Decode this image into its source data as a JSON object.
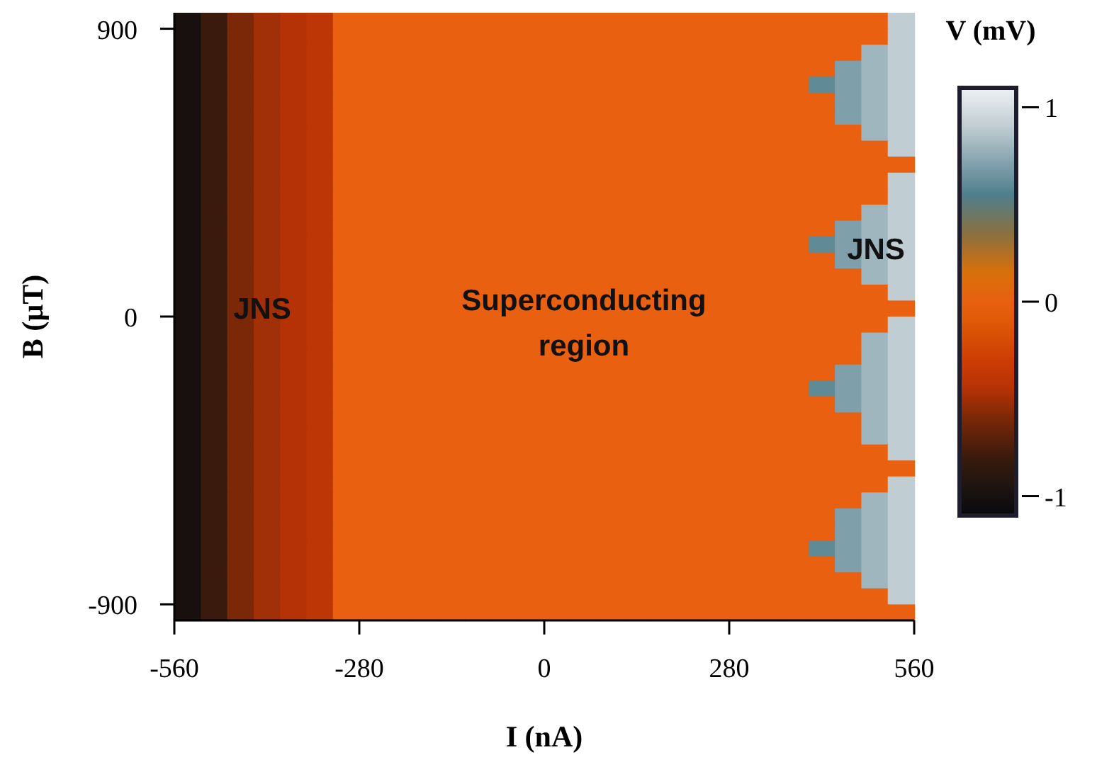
{
  "chart_data": {
    "type": "heatmap",
    "xlabel": "I (nA)",
    "ylabel": "B (µT)",
    "clabel": "V (mV)",
    "x": [
      -540,
      -500,
      -460,
      -420,
      -380,
      -340,
      -300,
      -260,
      -220,
      -180,
      -140,
      -100,
      -60,
      -20,
      20,
      60,
      100,
      140,
      180,
      220,
      260,
      300,
      340,
      380,
      420,
      460,
      500,
      540
    ],
    "y": [
      925,
      875,
      825,
      775,
      725,
      675,
      625,
      575,
      525,
      475,
      425,
      375,
      325,
      275,
      225,
      175,
      125,
      75,
      25,
      -25,
      -75,
      -125,
      -175,
      -225,
      -275,
      -325,
      -375,
      -425,
      -475,
      -525,
      -575,
      -625,
      -675,
      -725,
      -775,
      -825,
      -875,
      -925
    ],
    "xlim": [
      -560,
      560
    ],
    "xticks": [
      -560,
      -280,
      0,
      280,
      560
    ],
    "ylim": [
      -950,
      950
    ],
    "yticks": [
      -900,
      0,
      900
    ],
    "clim": [
      -1.1,
      1.1
    ],
    "cticks": [
      -1,
      0,
      1
    ],
    "cells": [
      [
        -1,
        -0.8,
        -0.6,
        -0.5,
        -0.45,
        -0.4,
        0,
        0,
        0,
        0,
        0,
        0,
        0,
        0,
        0,
        0,
        0,
        0,
        0,
        0,
        0,
        0,
        0,
        0,
        0,
        0,
        0,
        0.9
      ],
      [
        -1,
        -0.8,
        -0.6,
        -0.5,
        -0.45,
        -0.4,
        0,
        0,
        0,
        0,
        0,
        0,
        0,
        0,
        0,
        0,
        0,
        0,
        0,
        0,
        0,
        0,
        0,
        0,
        0,
        0,
        0,
        0.9
      ],
      [
        -1,
        -0.8,
        -0.6,
        -0.5,
        -0.45,
        -0.4,
        0,
        0,
        0,
        0,
        0,
        0,
        0,
        0,
        0,
        0,
        0,
        0,
        0,
        0,
        0,
        0,
        0,
        0,
        0,
        0,
        0.8,
        0.9
      ],
      [
        -1,
        -0.8,
        -0.6,
        -0.5,
        -0.45,
        -0.4,
        0,
        0,
        0,
        0,
        0,
        0,
        0,
        0,
        0,
        0,
        0,
        0,
        0,
        0,
        0,
        0,
        0,
        0,
        0,
        0.7,
        0.8,
        0.9
      ],
      [
        -1,
        -0.8,
        -0.6,
        -0.5,
        -0.45,
        -0.4,
        0,
        0,
        0,
        0,
        0,
        0,
        0,
        0,
        0,
        0,
        0,
        0,
        0,
        0,
        0,
        0,
        0,
        0,
        0.6,
        0.7,
        0.8,
        0.9
      ],
      [
        -1,
        -0.8,
        -0.6,
        -0.5,
        -0.45,
        -0.4,
        0,
        0,
        0,
        0,
        0,
        0,
        0,
        0,
        0,
        0,
        0,
        0,
        0,
        0,
        0,
        0,
        0,
        0,
        0,
        0.7,
        0.8,
        0.9
      ],
      [
        -1,
        -0.8,
        -0.6,
        -0.5,
        -0.45,
        -0.4,
        0,
        0,
        0,
        0,
        0,
        0,
        0,
        0,
        0,
        0,
        0,
        0,
        0,
        0,
        0,
        0,
        0,
        0,
        0,
        0.7,
        0.8,
        0.9
      ],
      [
        -1,
        -0.8,
        -0.6,
        -0.5,
        -0.45,
        -0.4,
        0,
        0,
        0,
        0,
        0,
        0,
        0,
        0,
        0,
        0,
        0,
        0,
        0,
        0,
        0,
        0,
        0,
        0,
        0,
        0,
        0.8,
        0.9
      ],
      [
        -1,
        -0.8,
        -0.6,
        -0.5,
        -0.45,
        -0.4,
        0,
        0,
        0,
        0,
        0,
        0,
        0,
        0,
        0,
        0,
        0,
        0,
        0,
        0,
        0,
        0,
        0,
        0,
        0,
        0,
        0,
        0.9
      ],
      [
        -1,
        -0.8,
        -0.6,
        -0.5,
        -0.45,
        -0.4,
        0,
        0,
        0,
        0,
        0,
        0,
        0,
        0,
        0,
        0,
        0,
        0,
        0,
        0,
        0,
        0,
        0,
        0,
        0,
        0,
        0,
        0
      ],
      [
        -1,
        -0.8,
        -0.6,
        -0.5,
        -0.45,
        -0.4,
        0,
        0,
        0,
        0,
        0,
        0,
        0,
        0,
        0,
        0,
        0,
        0,
        0,
        0,
        0,
        0,
        0,
        0,
        0,
        0,
        0,
        0.9
      ],
      [
        -1,
        -0.8,
        -0.6,
        -0.5,
        -0.45,
        -0.4,
        0,
        0,
        0,
        0,
        0,
        0,
        0,
        0,
        0,
        0,
        0,
        0,
        0,
        0,
        0,
        0,
        0,
        0,
        0,
        0,
        0,
        0.9
      ],
      [
        -1,
        -0.8,
        -0.6,
        -0.5,
        -0.45,
        -0.4,
        0,
        0,
        0,
        0,
        0,
        0,
        0,
        0,
        0,
        0,
        0,
        0,
        0,
        0,
        0,
        0,
        0,
        0,
        0,
        0,
        0.8,
        0.9
      ],
      [
        -1,
        -0.8,
        -0.6,
        -0.5,
        -0.45,
        -0.4,
        0,
        0,
        0,
        0,
        0,
        0,
        0,
        0,
        0,
        0,
        0,
        0,
        0,
        0,
        0,
        0,
        0,
        0,
        0,
        0.7,
        0.8,
        0.9
      ],
      [
        -1,
        -0.8,
        -0.6,
        -0.5,
        -0.45,
        -0.4,
        0,
        0,
        0,
        0,
        0,
        0,
        0,
        0,
        0,
        0,
        0,
        0,
        0,
        0,
        0,
        0,
        0,
        0,
        0.6,
        0.7,
        0.8,
        0.9
      ],
      [
        -1,
        -0.8,
        -0.6,
        -0.5,
        -0.45,
        -0.4,
        0,
        0,
        0,
        0,
        0,
        0,
        0,
        0,
        0,
        0,
        0,
        0,
        0,
        0,
        0,
        0,
        0,
        0,
        0,
        0.7,
        0.8,
        0.9
      ],
      [
        -1,
        -0.8,
        -0.6,
        -0.5,
        -0.45,
        -0.4,
        0,
        0,
        0,
        0,
        0,
        0,
        0,
        0,
        0,
        0,
        0,
        0,
        0,
        0,
        0,
        0,
        0,
        0,
        0,
        0,
        0.8,
        0.9
      ],
      [
        -1,
        -0.8,
        -0.6,
        -0.5,
        -0.45,
        -0.4,
        0,
        0,
        0,
        0,
        0,
        0,
        0,
        0,
        0,
        0,
        0,
        0,
        0,
        0,
        0,
        0,
        0,
        0,
        0,
        0,
        0,
        0.9
      ],
      [
        -1,
        -0.8,
        -0.6,
        -0.5,
        -0.45,
        -0.4,
        0,
        0,
        0,
        0,
        0,
        0,
        0,
        0,
        0,
        0,
        0,
        0,
        0,
        0,
        0,
        0,
        0,
        0,
        0,
        0,
        0,
        0
      ],
      [
        -1,
        -0.8,
        -0.6,
        -0.5,
        -0.45,
        -0.4,
        0,
        0,
        0,
        0,
        0,
        0,
        0,
        0,
        0,
        0,
        0,
        0,
        0,
        0,
        0,
        0,
        0,
        0,
        0,
        0,
        0,
        0.9
      ],
      [
        -1,
        -0.8,
        -0.6,
        -0.5,
        -0.45,
        -0.4,
        0,
        0,
        0,
        0,
        0,
        0,
        0,
        0,
        0,
        0,
        0,
        0,
        0,
        0,
        0,
        0,
        0,
        0,
        0,
        0,
        0.8,
        0.9
      ],
      [
        -1,
        -0.8,
        -0.6,
        -0.5,
        -0.45,
        -0.4,
        0,
        0,
        0,
        0,
        0,
        0,
        0,
        0,
        0,
        0,
        0,
        0,
        0,
        0,
        0,
        0,
        0,
        0,
        0,
        0,
        0.8,
        0.9
      ],
      [
        -1,
        -0.8,
        -0.6,
        -0.5,
        -0.45,
        -0.4,
        0,
        0,
        0,
        0,
        0,
        0,
        0,
        0,
        0,
        0,
        0,
        0,
        0,
        0,
        0,
        0,
        0,
        0,
        0,
        0.7,
        0.8,
        0.9
      ],
      [
        -1,
        -0.8,
        -0.6,
        -0.5,
        -0.45,
        -0.4,
        0,
        0,
        0,
        0,
        0,
        0,
        0,
        0,
        0,
        0,
        0,
        0,
        0,
        0,
        0,
        0,
        0,
        0,
        0.6,
        0.7,
        0.8,
        0.9
      ],
      [
        -1,
        -0.8,
        -0.6,
        -0.5,
        -0.45,
        -0.4,
        0,
        0,
        0,
        0,
        0,
        0,
        0,
        0,
        0,
        0,
        0,
        0,
        0,
        0,
        0,
        0,
        0,
        0,
        0,
        0.7,
        0.8,
        0.9
      ],
      [
        -1,
        -0.8,
        -0.6,
        -0.5,
        -0.45,
        -0.4,
        0,
        0,
        0,
        0,
        0,
        0,
        0,
        0,
        0,
        0,
        0,
        0,
        0,
        0,
        0,
        0,
        0,
        0,
        0,
        0,
        0.8,
        0.9
      ],
      [
        -1,
        -0.8,
        -0.6,
        -0.5,
        -0.45,
        -0.4,
        0,
        0,
        0,
        0,
        0,
        0,
        0,
        0,
        0,
        0,
        0,
        0,
        0,
        0,
        0,
        0,
        0,
        0,
        0,
        0,
        0.8,
        0.9
      ],
      [
        -1,
        -0.8,
        -0.6,
        -0.5,
        -0.45,
        -0.4,
        0,
        0,
        0,
        0,
        0,
        0,
        0,
        0,
        0,
        0,
        0,
        0,
        0,
        0,
        0,
        0,
        0,
        0,
        0,
        0,
        0,
        0.9
      ],
      [
        -1,
        -0.8,
        -0.6,
        -0.5,
        -0.45,
        -0.4,
        0,
        0,
        0,
        0,
        0,
        0,
        0,
        0,
        0,
        0,
        0,
        0,
        0,
        0,
        0,
        0,
        0,
        0,
        0,
        0,
        0,
        0
      ],
      [
        -1,
        -0.8,
        -0.6,
        -0.5,
        -0.45,
        -0.4,
        0,
        0,
        0,
        0,
        0,
        0,
        0,
        0,
        0,
        0,
        0,
        0,
        0,
        0,
        0,
        0,
        0,
        0,
        0,
        0,
        0,
        0.9
      ],
      [
        -1,
        -0.8,
        -0.6,
        -0.5,
        -0.45,
        -0.4,
        0,
        0,
        0,
        0,
        0,
        0,
        0,
        0,
        0,
        0,
        0,
        0,
        0,
        0,
        0,
        0,
        0,
        0,
        0,
        0,
        0.8,
        0.9
      ],
      [
        -1,
        -0.8,
        -0.6,
        -0.5,
        -0.45,
        -0.4,
        0,
        0,
        0,
        0,
        0,
        0,
        0,
        0,
        0,
        0,
        0,
        0,
        0,
        0,
        0,
        0,
        0,
        0,
        0,
        0.7,
        0.8,
        0.9
      ],
      [
        -1,
        -0.8,
        -0.6,
        -0.5,
        -0.45,
        -0.4,
        0,
        0,
        0,
        0,
        0,
        0,
        0,
        0,
        0,
        0,
        0,
        0,
        0,
        0,
        0,
        0,
        0,
        0,
        0,
        0.7,
        0.8,
        0.9
      ],
      [
        -1,
        -0.8,
        -0.6,
        -0.5,
        -0.45,
        -0.4,
        0,
        0,
        0,
        0,
        0,
        0,
        0,
        0,
        0,
        0,
        0,
        0,
        0,
        0,
        0,
        0,
        0,
        0,
        0.6,
        0.7,
        0.8,
        0.9
      ],
      [
        -1,
        -0.8,
        -0.6,
        -0.5,
        -0.45,
        -0.4,
        0,
        0,
        0,
        0,
        0,
        0,
        0,
        0,
        0,
        0,
        0,
        0,
        0,
        0,
        0,
        0,
        0,
        0,
        0,
        0.7,
        0.8,
        0.9
      ],
      [
        -1,
        -0.8,
        -0.6,
        -0.5,
        -0.45,
        -0.4,
        0,
        0,
        0,
        0,
        0,
        0,
        0,
        0,
        0,
        0,
        0,
        0,
        0,
        0,
        0,
        0,
        0,
        0,
        0,
        0,
        0.8,
        0.9
      ],
      [
        -1,
        -0.8,
        -0.6,
        -0.5,
        -0.45,
        -0.4,
        0,
        0,
        0,
        0,
        0,
        0,
        0,
        0,
        0,
        0,
        0,
        0,
        0,
        0,
        0,
        0,
        0,
        0,
        0,
        0,
        0,
        0.9
      ],
      [
        -1,
        -0.8,
        -0.6,
        -0.5,
        -0.45,
        -0.4,
        0,
        0,
        0,
        0,
        0,
        0,
        0,
        0,
        0,
        0,
        0,
        0,
        0,
        0,
        0,
        0,
        0,
        0,
        0,
        0,
        0,
        0
      ]
    ],
    "annotations": [
      "JNS",
      "Superconducting region",
      "JNS"
    ]
  }
}
